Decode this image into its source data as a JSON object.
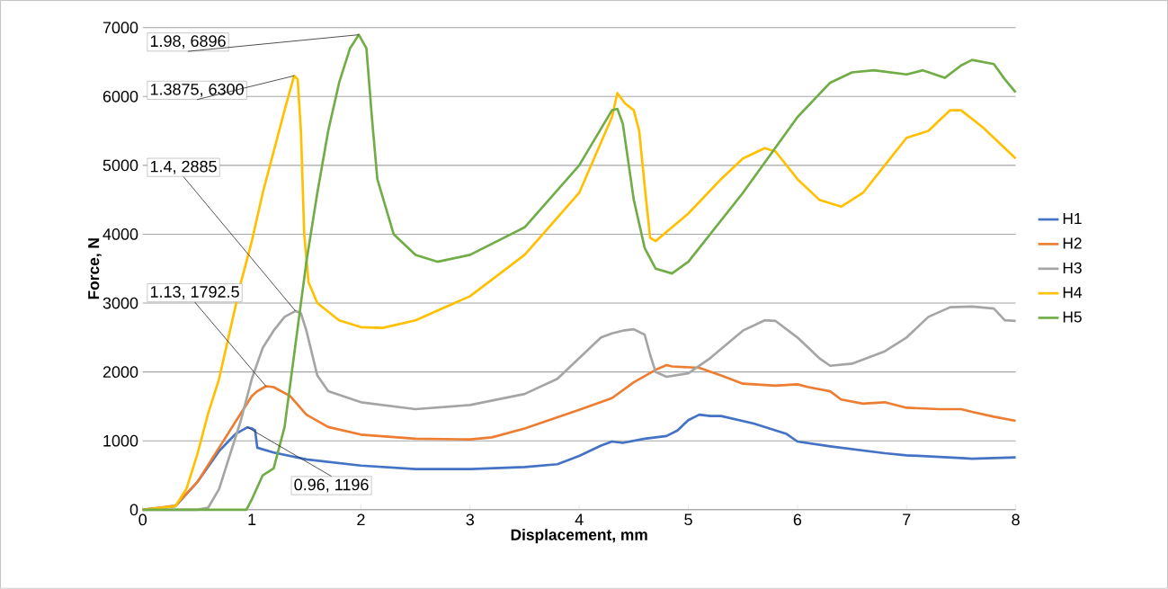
{
  "chart_data": {
    "type": "line",
    "xlabel": "Displacement, mm",
    "ylabel": "Force, N",
    "xlim": [
      0,
      8
    ],
    "ylim": [
      0,
      7000
    ],
    "xticks": [
      0,
      1,
      2,
      3,
      4,
      5,
      6,
      7,
      8
    ],
    "yticks": [
      0,
      1000,
      2000,
      3000,
      4000,
      5000,
      6000,
      7000
    ],
    "grid": "y",
    "legend": "right",
    "marker": "none",
    "line_style": "solid",
    "series": [
      {
        "name": "H1",
        "color": "#4472c4",
        "x": [
          0,
          0.3,
          0.5,
          0.7,
          0.85,
          0.96,
          1.0,
          1.03,
          1.05,
          1.2,
          1.5,
          2,
          2.5,
          3,
          3.5,
          3.8,
          4,
          4.2,
          4.3,
          4.4,
          4.6,
          4.8,
          4.9,
          5.0,
          5.1,
          5.2,
          5.3,
          5.6,
          5.9,
          6.0,
          6.3,
          6.8,
          7.0,
          7.5,
          7.6,
          8
        ],
        "values": [
          0,
          50,
          400,
          850,
          1100,
          1196,
          1180,
          1150,
          900,
          830,
          730,
          640,
          590,
          590,
          620,
          660,
          780,
          930,
          990,
          970,
          1030,
          1070,
          1150,
          1300,
          1380,
          1360,
          1360,
          1250,
          1100,
          990,
          920,
          820,
          790,
          750,
          740,
          760
        ]
      },
      {
        "name": "H2",
        "color": "#ed7d31",
        "x": [
          0,
          0.3,
          0.5,
          0.7,
          0.9,
          1.0,
          1.05,
          1.13,
          1.2,
          1.35,
          1.5,
          1.7,
          2,
          2.5,
          3,
          3.2,
          3.5,
          4,
          4.3,
          4.5,
          4.7,
          4.8,
          4.85,
          5.1,
          5.3,
          5.5,
          5.8,
          6.0,
          6.1,
          6.3,
          6.4,
          6.6,
          6.8,
          7.0,
          7.3,
          7.5,
          7.6,
          7.8,
          8
        ],
        "values": [
          0,
          60,
          400,
          900,
          1400,
          1650,
          1720,
          1792.5,
          1780,
          1650,
          1380,
          1200,
          1090,
          1030,
          1020,
          1050,
          1180,
          1450,
          1620,
          1850,
          2030,
          2100,
          2080,
          2060,
          1950,
          1830,
          1800,
          1820,
          1780,
          1720,
          1600,
          1540,
          1560,
          1480,
          1460,
          1460,
          1420,
          1350,
          1290
        ]
      },
      {
        "name": "H3",
        "color": "#a5a5a5",
        "x": [
          0,
          0.5,
          0.6,
          0.7,
          0.8,
          0.9,
          1.0,
          1.1,
          1.2,
          1.3,
          1.4,
          1.45,
          1.5,
          1.6,
          1.7,
          2,
          2.5,
          3,
          3.5,
          3.8,
          4,
          4.2,
          4.3,
          4.4,
          4.5,
          4.6,
          4.65,
          4.7,
          4.8,
          5.0,
          5.2,
          5.5,
          5.7,
          5.8,
          6.0,
          6.2,
          6.3,
          6.5,
          6.8,
          7.0,
          7.2,
          7.4,
          7.6,
          7.8,
          7.9,
          8
        ],
        "values": [
          0,
          0,
          30,
          300,
          800,
          1300,
          1900,
          2350,
          2600,
          2800,
          2885,
          2850,
          2600,
          1950,
          1720,
          1560,
          1460,
          1520,
          1680,
          1900,
          2200,
          2500,
          2560,
          2600,
          2620,
          2540,
          2250,
          2000,
          1930,
          1980,
          2200,
          2600,
          2750,
          2740,
          2500,
          2200,
          2090,
          2120,
          2300,
          2500,
          2800,
          2940,
          2950,
          2920,
          2750,
          2740
        ]
      },
      {
        "name": "H4",
        "color": "#ffc000",
        "x": [
          0,
          0.3,
          0.4,
          0.5,
          0.6,
          0.7,
          0.8,
          0.9,
          1.0,
          1.1,
          1.2,
          1.3,
          1.3875,
          1.42,
          1.45,
          1.48,
          1.52,
          1.6,
          1.8,
          2,
          2.2,
          2.5,
          3,
          3.5,
          4,
          4.3,
          4.35,
          4.42,
          4.5,
          4.55,
          4.6,
          4.65,
          4.7,
          5,
          5.3,
          5.5,
          5.7,
          5.8,
          6.0,
          6.2,
          6.4,
          6.6,
          6.8,
          7.0,
          7.2,
          7.4,
          7.5,
          7.7,
          8
        ],
        "values": [
          0,
          50,
          300,
          800,
          1400,
          1900,
          2600,
          3300,
          3900,
          4600,
          5200,
          5800,
          6300,
          6250,
          5500,
          4000,
          3300,
          3000,
          2750,
          2650,
          2640,
          2750,
          3100,
          3700,
          4600,
          5700,
          6050,
          5900,
          5800,
          5500,
          4700,
          3950,
          3900,
          4300,
          4800,
          5100,
          5250,
          5200,
          4800,
          4500,
          4400,
          4600,
          5000,
          5400,
          5500,
          5800,
          5800,
          5550,
          5100
        ]
      },
      {
        "name": "H5",
        "color": "#70ad47",
        "x": [
          0,
          0.95,
          1.0,
          1.1,
          1.2,
          1.3,
          1.4,
          1.5,
          1.6,
          1.7,
          1.8,
          1.9,
          1.98,
          2.05,
          2.1,
          2.15,
          2.3,
          2.5,
          2.7,
          3,
          3.5,
          4,
          4.3,
          4.35,
          4.4,
          4.5,
          4.6,
          4.7,
          4.85,
          5.0,
          5.5,
          6.0,
          6.3,
          6.5,
          6.7,
          7.0,
          7.15,
          7.35,
          7.5,
          7.6,
          7.8,
          7.9,
          8
        ],
        "values": [
          0,
          0,
          150,
          500,
          600,
          1200,
          2400,
          3600,
          4600,
          5500,
          6200,
          6700,
          6896,
          6700,
          5700,
          4800,
          4000,
          3700,
          3600,
          3700,
          4100,
          5000,
          5800,
          5820,
          5600,
          4500,
          3800,
          3500,
          3430,
          3600,
          4600,
          5700,
          6200,
          6350,
          6380,
          6320,
          6380,
          6270,
          6450,
          6530,
          6470,
          6250,
          6060
        ]
      }
    ],
    "annotations": [
      {
        "text": "0.96, 1196",
        "x": 0.96,
        "y": 1196
      },
      {
        "text": "1.13, 1792.5",
        "x": 1.13,
        "y": 1792.5
      },
      {
        "text": "1.4, 2885",
        "x": 1.4,
        "y": 2885
      },
      {
        "text": "1.3875, 6300",
        "x": 1.3875,
        "y": 6300
      },
      {
        "text": "1.98, 6896",
        "x": 1.98,
        "y": 6896
      }
    ]
  }
}
